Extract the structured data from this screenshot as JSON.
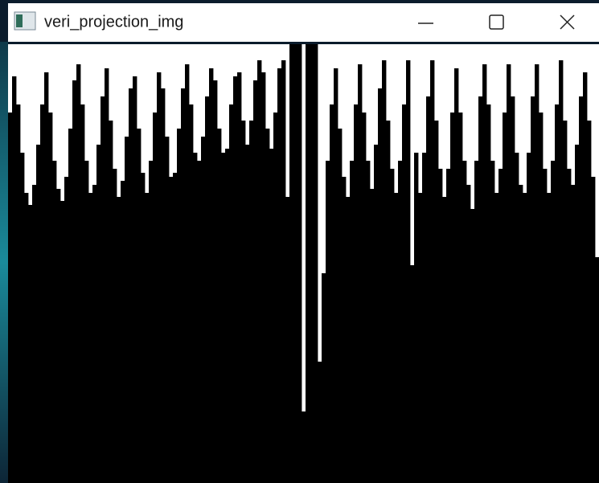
{
  "window": {
    "title": "veri_projection_img",
    "projection": {
      "column_heights": [
        461,
        506,
        471,
        411,
        361,
        346,
        371,
        421,
        471,
        511,
        461,
        401,
        366,
        351,
        381,
        441,
        501,
        521,
        471,
        401,
        361,
        371,
        421,
        481,
        516,
        451,
        391,
        356,
        376,
        431,
        491,
        506,
        441,
        386,
        361,
        401,
        461,
        511,
        491,
        431,
        381,
        386,
        441,
        491,
        521,
        471,
        411,
        401,
        431,
        481,
        516,
        501,
        441,
        411,
        416,
        471,
        506,
        511,
        451,
        421,
        451,
        501,
        526,
        511,
        441,
        416,
        461,
        516,
        526,
        356,
        546,
        546,
        546,
        89,
        546,
        546,
        546,
        151,
        261,
        401,
        471,
        516,
        441,
        381,
        356,
        401,
        471,
        521,
        461,
        401,
        366,
        421,
        491,
        526,
        451,
        391,
        361,
        401,
        471,
        526,
        271,
        411,
        361,
        411,
        481,
        526,
        451,
        391,
        356,
        391,
        461,
        516,
        461,
        401,
        371,
        341,
        401,
        481,
        521,
        471,
        401,
        361,
        391,
        461,
        521,
        481,
        411,
        371,
        361,
        411,
        481,
        521,
        461,
        391,
        361,
        401,
        471,
        526,
        451,
        391,
        371,
        421,
        481,
        511,
        451,
        381,
        281
      ]
    }
  }
}
